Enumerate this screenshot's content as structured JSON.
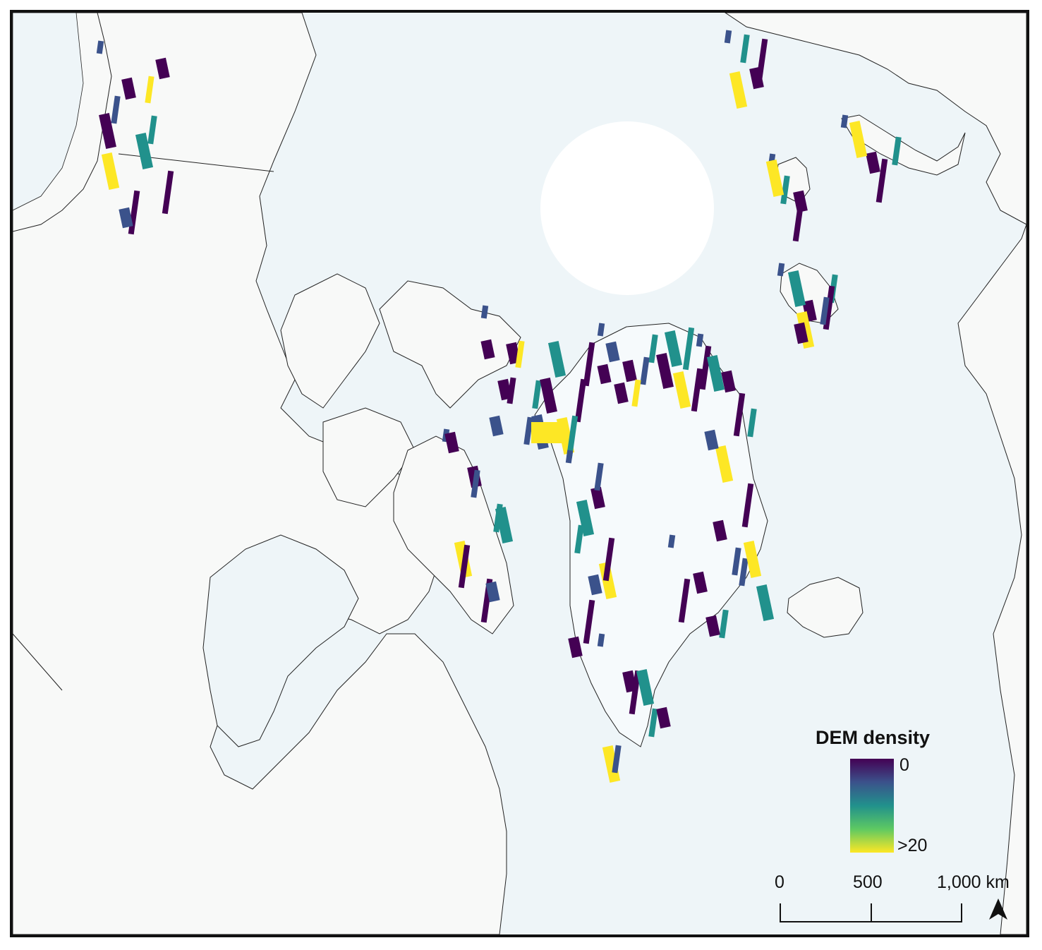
{
  "legend": {
    "title": "DEM density",
    "min_label": "0",
    "max_label": ">20",
    "colormap": [
      "#440154",
      "#3b528b",
      "#21918c",
      "#5ec962",
      "#fde725"
    ]
  },
  "scale_bar": {
    "labels": [
      "0",
      "500",
      "1,000 km"
    ],
    "values_km": [
      0,
      500,
      1000
    ]
  },
  "colors": {
    "ocean": "#eef5f8",
    "land": "#f8f9f8",
    "greenland_ice": "#f6fafc",
    "coastline": "#222222",
    "pole_hole": "#ffffff"
  },
  "icons": {
    "north_arrow": "north-arrow-icon"
  }
}
